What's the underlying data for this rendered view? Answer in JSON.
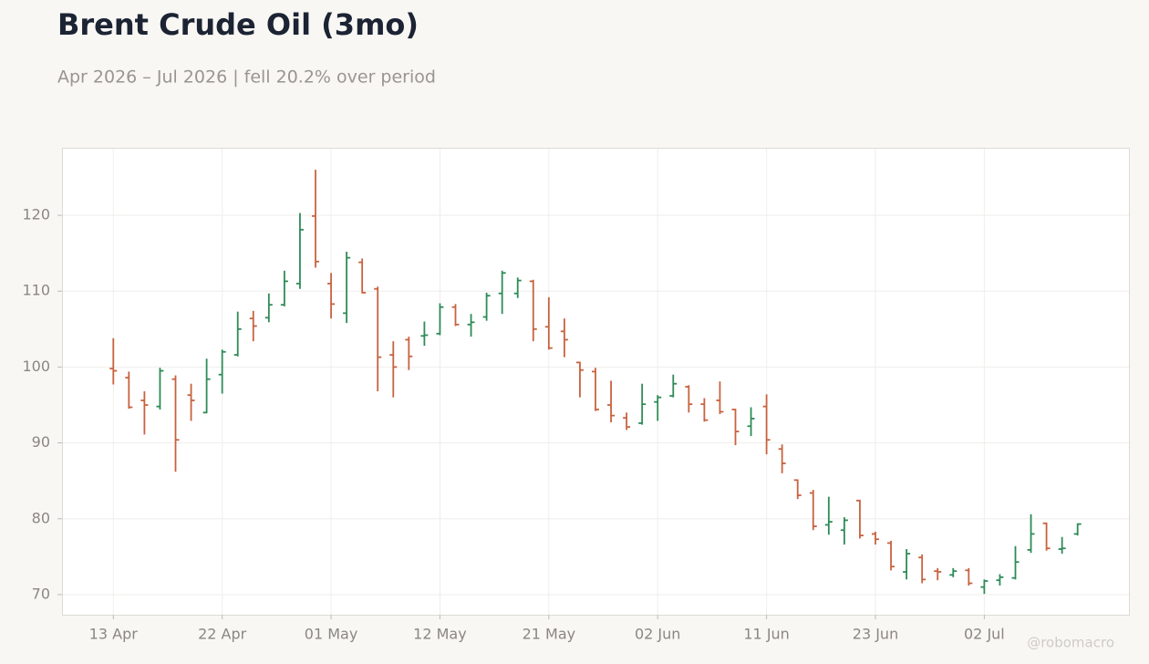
{
  "chart_data": {
    "type": "ohlc",
    "title": "Brent Crude Oil (3mo)",
    "subtitle": "Apr 2026 – Jul 2026 | fell 20.2% over period",
    "watermark": "@robomacro",
    "categories": [
      "13 Apr",
      null,
      null,
      null,
      null,
      null,
      null,
      "22 Apr",
      null,
      null,
      null,
      null,
      null,
      null,
      "01 May",
      null,
      null,
      null,
      null,
      null,
      null,
      "12 May",
      null,
      null,
      null,
      null,
      null,
      null,
      "21 May",
      null,
      null,
      null,
      null,
      null,
      null,
      "02 Jun",
      null,
      null,
      null,
      null,
      null,
      null,
      "11 Jun",
      null,
      null,
      null,
      null,
      null,
      null,
      "23 Jun",
      null,
      null,
      null,
      null,
      null,
      null,
      "02 Jul",
      null,
      null,
      null,
      null,
      null,
      null
    ],
    "open": [
      99.8,
      98.6,
      95.6,
      94.8,
      98.4,
      96.3,
      94.0,
      99.0,
      101.6,
      106.4,
      106.5,
      108.2,
      111.0,
      119.9,
      111.0,
      107.1,
      113.8,
      110.3,
      101.6,
      103.6,
      104.1,
      104.4,
      107.9,
      105.6,
      106.6,
      109.7,
      109.7,
      111.3,
      105.3,
      104.7,
      100.6,
      99.4,
      95.0,
      93.3,
      92.6,
      95.4,
      96.2,
      97.4,
      95.1,
      95.6,
      94.4,
      92.2,
      94.8,
      89.2,
      85.1,
      83.4,
      79.2,
      78.5,
      82.4,
      78.0,
      76.8,
      73.0,
      74.9,
      73.1,
      72.6,
      73.2,
      71.0,
      71.9,
      72.2,
      75.9,
      79.4,
      76.0,
      78.0
    ],
    "high": [
      103.8,
      99.4,
      96.8,
      99.9,
      98.9,
      97.8,
      101.1,
      102.3,
      107.3,
      107.4,
      109.7,
      112.7,
      120.3,
      126.0,
      112.4,
      115.2,
      114.3,
      110.6,
      103.4,
      104.0,
      106.0,
      108.4,
      108.3,
      107.0,
      109.8,
      112.7,
      111.8,
      111.5,
      109.2,
      106.4,
      100.7,
      99.9,
      98.2,
      94.0,
      97.8,
      96.3,
      99.0,
      97.6,
      95.9,
      98.1,
      94.5,
      94.7,
      96.4,
      89.8,
      85.2,
      83.8,
      82.9,
      80.2,
      82.5,
      78.3,
      77.1,
      76.0,
      75.3,
      73.5,
      73.5,
      73.5,
      72.0,
      72.7,
      76.4,
      80.6,
      79.5,
      77.6,
      79.4
    ],
    "low": [
      97.7,
      94.5,
      91.1,
      94.4,
      86.2,
      92.9,
      93.9,
      96.5,
      101.4,
      103.4,
      105.9,
      108.0,
      110.3,
      113.1,
      106.4,
      105.8,
      109.7,
      96.8,
      96.0,
      99.6,
      102.8,
      104.2,
      105.4,
      104.0,
      106.1,
      107.0,
      109.1,
      103.4,
      102.3,
      101.3,
      96.0,
      94.2,
      92.7,
      91.7,
      92.4,
      92.9,
      96.0,
      94.0,
      92.8,
      93.8,
      89.7,
      90.9,
      88.5,
      86.0,
      82.6,
      78.5,
      77.9,
      76.6,
      77.4,
      76.6,
      73.2,
      72.0,
      71.5,
      71.9,
      72.3,
      71.2,
      70.1,
      71.2,
      72.0,
      75.5,
      75.8,
      75.4,
      77.8
    ],
    "close": [
      99.5,
      94.7,
      95.0,
      99.5,
      90.4,
      95.6,
      98.4,
      102.0,
      105.0,
      105.4,
      108.2,
      111.3,
      118.1,
      113.9,
      108.3,
      114.4,
      109.8,
      101.3,
      100.0,
      101.4,
      104.2,
      107.9,
      105.6,
      105.9,
      109.4,
      112.4,
      111.4,
      105.0,
      102.5,
      103.6,
      99.6,
      94.4,
      93.6,
      92.1,
      95.1,
      96.0,
      97.8,
      95.1,
      93.0,
      94.1,
      91.5,
      93.2,
      90.4,
      87.3,
      83.1,
      79.0,
      79.6,
      79.8,
      77.8,
      77.3,
      73.7,
      75.4,
      72.0,
      73.0,
      73.1,
      71.5,
      71.8,
      72.3,
      74.3,
      78.0,
      76.1,
      76.1,
      79.3
    ],
    "up_color": "#2e8b57",
    "down_color": "#c8623f",
    "ylim": [
      67.35,
      128.9
    ],
    "yticks": [
      70,
      80,
      90,
      100,
      110,
      120
    ],
    "grid": true
  }
}
